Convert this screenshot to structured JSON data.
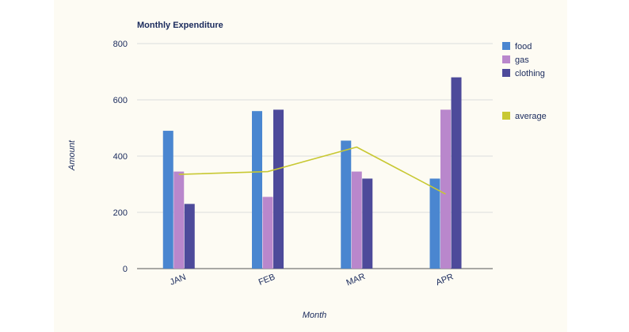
{
  "chart_data": {
    "type": "bar",
    "title": "Monthly Expenditure",
    "xlabel": "Month",
    "ylabel": "Amount",
    "categories": [
      "JAN",
      "FEB",
      "MAR",
      "APR"
    ],
    "ylim": [
      0,
      800
    ],
    "yticks": [
      "0",
      "200",
      "400",
      "600",
      "800"
    ],
    "grid": true,
    "legend_position": "right",
    "series": [
      {
        "name": "food",
        "values": [
          490,
          560,
          455,
          320
        ],
        "color": "#4a86d0"
      },
      {
        "name": "gas",
        "values": [
          345,
          255,
          345,
          565
        ],
        "color": "#b987cc"
      },
      {
        "name": "clothing",
        "values": [
          230,
          565,
          320,
          680
        ],
        "color": "#4d4a9a"
      }
    ],
    "line_series": {
      "name": "average",
      "values": [
        335,
        345,
        432,
        265
      ],
      "color": "#c8c832"
    }
  }
}
